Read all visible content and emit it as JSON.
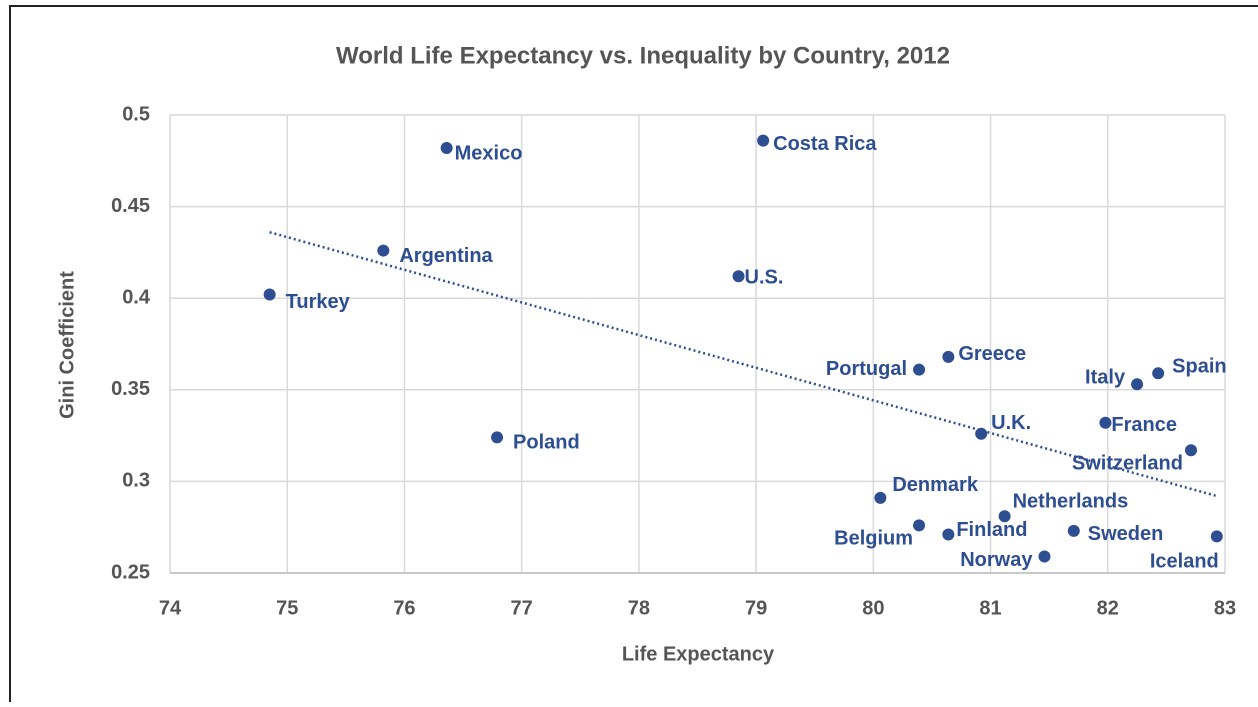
{
  "chart_data": {
    "type": "scatter",
    "title": "World Life Expectancy vs. Inequality by Country, 2012",
    "xlabel": "Life Expectancy",
    "ylabel": "Gini Coefficient",
    "labels": [
      "Turkey",
      "Argentina",
      "Mexico",
      "Costa Rica",
      "U.S.",
      "Poland",
      "Portugal",
      "Greece",
      "U.K.",
      "Denmark",
      "Belgium",
      "Finland",
      "Netherlands",
      "Norway",
      "Sweden",
      "Iceland",
      "Italy",
      "Spain",
      "France",
      "Switzerland"
    ],
    "x": [
      74.85,
      75.82,
      76.36,
      79.06,
      78.85,
      76.79,
      80.39,
      80.64,
      80.92,
      80.06,
      80.39,
      80.64,
      81.12,
      81.46,
      81.71,
      82.93,
      82.25,
      82.43,
      81.98,
      82.71
    ],
    "y": [
      0.402,
      0.426,
      0.482,
      0.486,
      0.412,
      0.324,
      0.361,
      0.368,
      0.326,
      0.291,
      0.276,
      0.271,
      0.281,
      0.259,
      0.273,
      0.27,
      0.353,
      0.359,
      0.332,
      0.317
    ],
    "color": "#2e4e92",
    "trendline": {
      "x": [
        74.85,
        82.93
      ],
      "y": [
        0.436,
        0.292
      ],
      "style": "dotted"
    },
    "xlim": [
      74,
      83
    ],
    "xticks": [
      74,
      75,
      76,
      77,
      78,
      79,
      80,
      81,
      82,
      83
    ],
    "ylim": [
      0.25,
      0.5
    ],
    "yticks": [
      0.25,
      0.3,
      0.35,
      0.4,
      0.45,
      0.5
    ],
    "grid": true
  }
}
